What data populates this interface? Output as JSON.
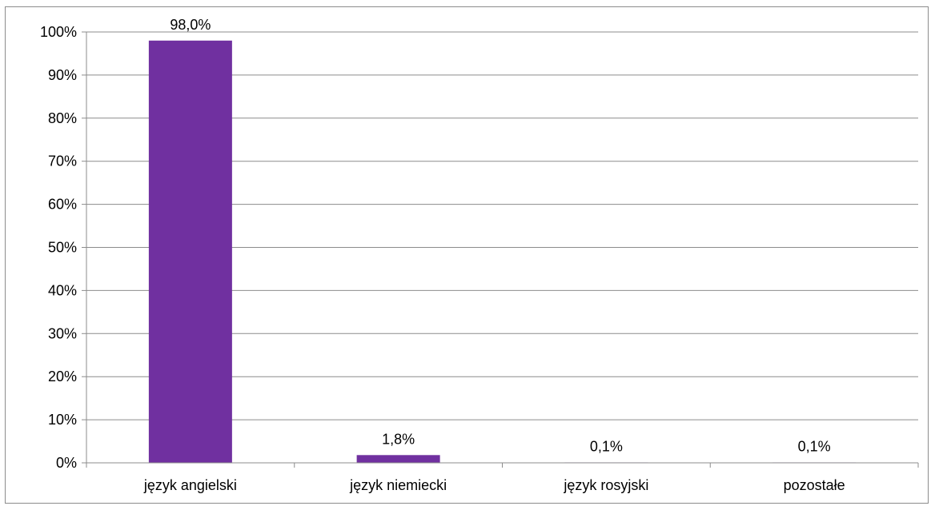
{
  "chart_data": {
    "type": "bar",
    "categories": [
      "język angielski",
      "język niemiecki",
      "język rosyjski",
      "pozostałe"
    ],
    "values": [
      98.0,
      1.8,
      0.1,
      0.1
    ],
    "data_labels": [
      "98,0%",
      "1,8%",
      "0,1%",
      "0,1%"
    ],
    "yticks": [
      "0%",
      "10%",
      "20%",
      "30%",
      "40%",
      "50%",
      "60%",
      "70%",
      "80%",
      "90%",
      "100%"
    ],
    "ylim": [
      0,
      100
    ],
    "grid": true,
    "bar_color": "#7030A0",
    "gridline_color": "#8c8c8c",
    "title": "",
    "xlabel": "",
    "ylabel": ""
  }
}
